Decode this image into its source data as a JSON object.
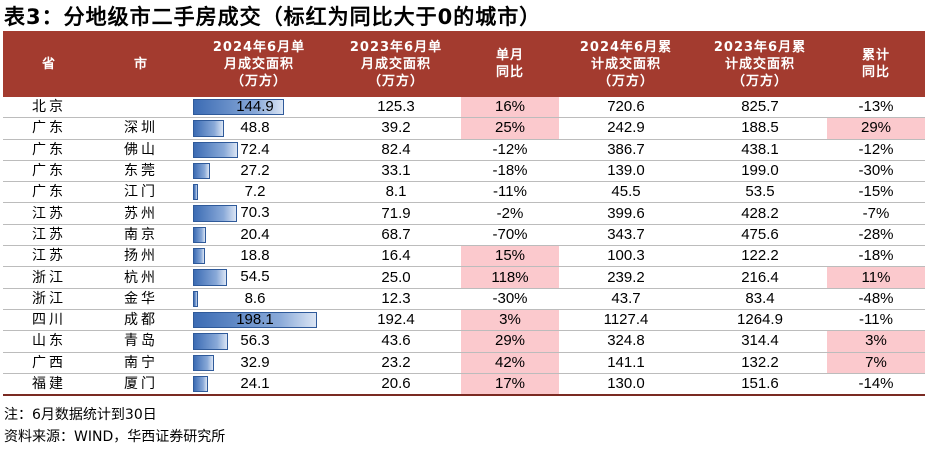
{
  "title": "表3：分地级市二手房成交（标红为同比大于0的城市）",
  "headers": [
    [
      "省"
    ],
    [
      "市"
    ],
    [
      "2024年6月单",
      "月成交面积",
      "（万方）"
    ],
    [
      "2023年6月单",
      "月成交面积",
      "（万方）"
    ],
    [
      "单月",
      "同比"
    ],
    [
      "2024年6月累",
      "计成交面积",
      "（万方）"
    ],
    [
      "2023年6月累",
      "计成交面积",
      "（万方）"
    ],
    [
      "累计",
      "同比"
    ]
  ],
  "colors": {
    "header_bg": "#a33b2f",
    "positive_bg": "#fbc9cd",
    "bar": "#3c6cb4"
  },
  "bar_max": 198.1,
  "rows": [
    {
      "province": "北京",
      "city": "",
      "m2024": 144.9,
      "m2023": "125.3",
      "yoy": "16%",
      "yoy_pos": true,
      "c2024": "720.6",
      "c2023": "825.7",
      "cyoy": "-13%",
      "cyoy_pos": false
    },
    {
      "province": "广东",
      "city": "深圳",
      "m2024": 48.8,
      "m2023": "39.2",
      "yoy": "25%",
      "yoy_pos": true,
      "c2024": "242.9",
      "c2023": "188.5",
      "cyoy": "29%",
      "cyoy_pos": true
    },
    {
      "province": "广东",
      "city": "佛山",
      "m2024": 72.4,
      "m2023": "82.4",
      "yoy": "-12%",
      "yoy_pos": false,
      "c2024": "386.7",
      "c2023": "438.1",
      "cyoy": "-12%",
      "cyoy_pos": false
    },
    {
      "province": "广东",
      "city": "东莞",
      "m2024": 27.2,
      "m2023": "33.1",
      "yoy": "-18%",
      "yoy_pos": false,
      "c2024": "139.0",
      "c2023": "199.0",
      "cyoy": "-30%",
      "cyoy_pos": false
    },
    {
      "province": "广东",
      "city": "江门",
      "m2024": 7.2,
      "m2023": "8.1",
      "yoy": "-11%",
      "yoy_pos": false,
      "c2024": "45.5",
      "c2023": "53.5",
      "cyoy": "-15%",
      "cyoy_pos": false
    },
    {
      "province": "江苏",
      "city": "苏州",
      "m2024": 70.3,
      "m2023": "71.9",
      "yoy": "-2%",
      "yoy_pos": false,
      "c2024": "399.6",
      "c2023": "428.2",
      "cyoy": "-7%",
      "cyoy_pos": false
    },
    {
      "province": "江苏",
      "city": "南京",
      "m2024": 20.4,
      "m2023": "68.7",
      "yoy": "-70%",
      "yoy_pos": false,
      "c2024": "343.7",
      "c2023": "475.6",
      "cyoy": "-28%",
      "cyoy_pos": false
    },
    {
      "province": "江苏",
      "city": "扬州",
      "m2024": 18.8,
      "m2023": "16.4",
      "yoy": "15%",
      "yoy_pos": true,
      "c2024": "100.3",
      "c2023": "122.2",
      "cyoy": "-18%",
      "cyoy_pos": false
    },
    {
      "province": "浙江",
      "city": "杭州",
      "m2024": 54.5,
      "m2023": "25.0",
      "yoy": "118%",
      "yoy_pos": true,
      "c2024": "239.2",
      "c2023": "216.4",
      "cyoy": "11%",
      "cyoy_pos": true
    },
    {
      "province": "浙江",
      "city": "金华",
      "m2024": 8.6,
      "m2023": "12.3",
      "yoy": "-30%",
      "yoy_pos": false,
      "c2024": "43.7",
      "c2023": "83.4",
      "cyoy": "-48%",
      "cyoy_pos": false
    },
    {
      "province": "四川",
      "city": "成都",
      "m2024": 198.1,
      "m2023": "192.4",
      "yoy": "3%",
      "yoy_pos": true,
      "c2024": "1127.4",
      "c2023": "1264.9",
      "cyoy": "-11%",
      "cyoy_pos": false
    },
    {
      "province": "山东",
      "city": "青岛",
      "m2024": 56.3,
      "m2023": "43.6",
      "yoy": "29%",
      "yoy_pos": true,
      "c2024": "324.8",
      "c2023": "314.4",
      "cyoy": "3%",
      "cyoy_pos": true
    },
    {
      "province": "广西",
      "city": "南宁",
      "m2024": 32.9,
      "m2023": "23.2",
      "yoy": "42%",
      "yoy_pos": true,
      "c2024": "141.1",
      "c2023": "132.2",
      "cyoy": "7%",
      "cyoy_pos": true
    },
    {
      "province": "福建",
      "city": "厦门",
      "m2024": 24.1,
      "m2023": "20.6",
      "yoy": "17%",
      "yoy_pos": true,
      "c2024": "130.0",
      "c2023": "151.6",
      "cyoy": "-14%",
      "cyoy_pos": false
    }
  ],
  "notes": {
    "note": "注：6月数据统计到30日",
    "source": "资料来源：WIND，华西证券研究所"
  }
}
